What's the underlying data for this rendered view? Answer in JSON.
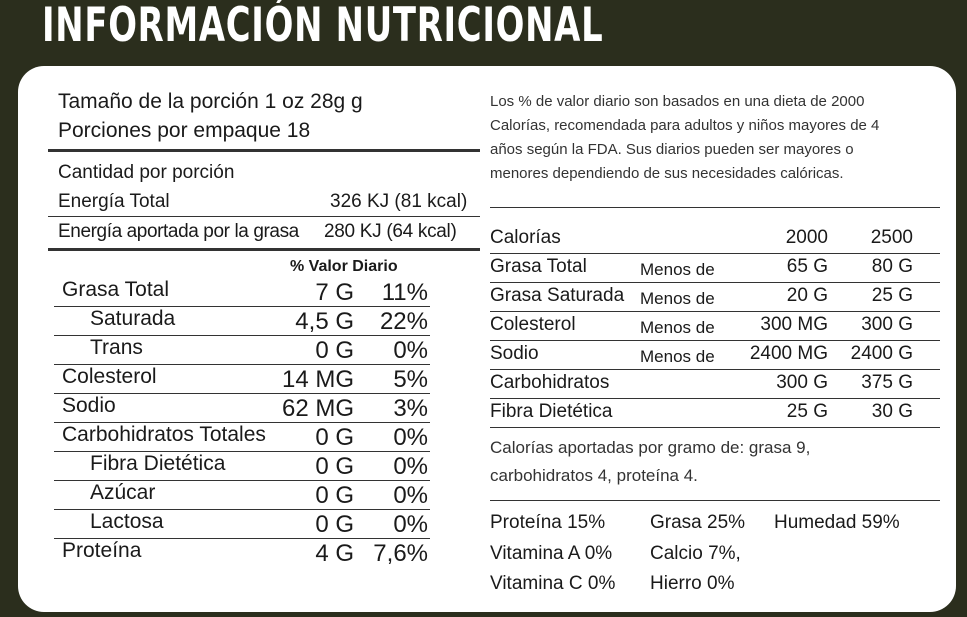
{
  "title": "INFORMACIÓN NUTRICIONAL",
  "serving": {
    "size": "Tamaño de la porción 1 oz 28g g",
    "per_package": "Porciones por empaque 18"
  },
  "amount_header": "Cantidad por porción",
  "energy": {
    "label": "Energía Total",
    "value": "326 KJ (81 kcal)",
    "fat_label": "Energía aportada por la grasa",
    "fat_value": "280 KJ (64 kcal)"
  },
  "dv_header": "% Valor Diario",
  "nutrients": [
    {
      "label": "Grasa Total",
      "amount": "7 G",
      "dv": "11%"
    },
    {
      "label": "Saturada",
      "amount": "4,5 G",
      "dv": "22%"
    },
    {
      "label": "Trans",
      "amount": "0 G",
      "dv": "0%"
    },
    {
      "label": "Colesterol",
      "amount": "14 MG",
      "dv": "5%"
    },
    {
      "label": "Sodio",
      "amount": "62 MG",
      "dv": "3%"
    },
    {
      "label": "Carbohidratos Totales",
      "amount": "0 G",
      "dv": "0%"
    },
    {
      "label": "Fibra Dietética",
      "amount": "0 G",
      "dv": "0%"
    },
    {
      "label": "Azúcar",
      "amount": "0 G",
      "dv": "0%"
    },
    {
      "label": "Lactosa",
      "amount": "0 G",
      "dv": "0%"
    },
    {
      "label": "Proteína",
      "amount": "4 G",
      "dv": "7,6%"
    }
  ],
  "note": "Los % de valor diario son basados en una dieta de 2000 Calorías, recomendada para adultos y niños mayores de 4 años según la FDA. Sus diarios pueden ser mayores o menores dependiendo de sus necesidades calóricas.",
  "reference": {
    "header": {
      "label": "Calorías",
      "col1": "2000",
      "col2": "2500"
    },
    "rows": [
      {
        "label": "Grasa Total",
        "qualifier": "Menos de",
        "col1": "65 G",
        "col2": "80 G"
      },
      {
        "label": "Grasa Saturada",
        "qualifier": "Menos de",
        "col1": "20 G",
        "col2": "25 G"
      },
      {
        "label": "Colesterol",
        "qualifier": "Menos de",
        "col1": "300 MG",
        "col2": "300 G"
      },
      {
        "label": "Sodio",
        "qualifier": "Menos de",
        "col1": "2400 MG",
        "col2": "2400 G"
      },
      {
        "label": "Carbohidratos",
        "qualifier": "",
        "col1": "300 G",
        "col2": "375 G"
      },
      {
        "label": "Fibra Dietética",
        "qualifier": "",
        "col1": "25 G",
        "col2": "30 G"
      }
    ]
  },
  "calories_per_gram": "Calorías aportadas por gramo de: grasa 9, carbohidratos 4, proteína 4.",
  "extra": [
    {
      "label": "Proteína",
      "value": "15%"
    },
    {
      "label": "Grasa",
      "value": "25%"
    },
    {
      "label": "Humedad",
      "value": "59%"
    },
    {
      "label": "Vitamina A",
      "value": "0%"
    },
    {
      "label": "Calcio",
      "value": "7%,"
    },
    {
      "label": "Vitamina C",
      "value": "0%"
    },
    {
      "label": "Hierro",
      "value": "0%"
    }
  ]
}
